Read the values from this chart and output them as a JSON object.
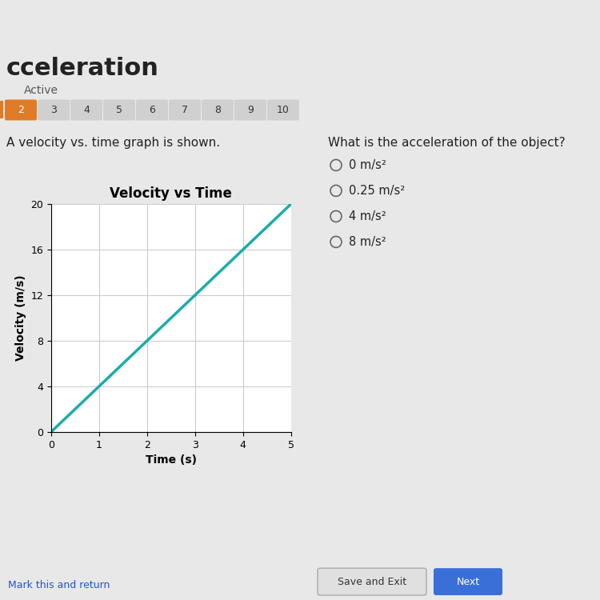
{
  "bg_color": "#e8e8e8",
  "top_bar_color": "#4a3fb5",
  "header_text": "cceleration",
  "header_subtext": "Active",
  "question_label": "A velocity vs. time graph is shown.",
  "question_right": "What is the acceleration of the object?",
  "choices": [
    "0 m/s²",
    "0.25 m/s²",
    "4 m/s²",
    "8 m/s²"
  ],
  "tab_active": "2",
  "tabs": [
    "2",
    "3",
    "4",
    "5",
    "6",
    "7",
    "8",
    "9",
    "10"
  ],
  "tab_active_color": "#e07b28",
  "tab_inactive_color": "#d0d0d0",
  "tab_text_color_active": "#ffffff",
  "tab_text_color_inactive": "#333333",
  "graph_title": "Velocity vs Time",
  "xlabel": "Time (s)",
  "ylabel": "Velocity (m/s)",
  "x_data": [
    0,
    5
  ],
  "y_data": [
    0,
    20
  ],
  "xlim": [
    0,
    5
  ],
  "ylim": [
    0,
    20
  ],
  "xticks": [
    0,
    1,
    2,
    3,
    4,
    5
  ],
  "yticks": [
    0,
    4,
    8,
    12,
    16,
    20
  ],
  "line_color": "#1aada8",
  "line_width": 2.5,
  "grid_color": "#cccccc",
  "axis_bg": "#ffffff",
  "bottom_link": "Mark this and return",
  "save_btn_text": "Save and Exit",
  "next_btn_text": "Next",
  "save_btn_color": "#e0e0e0",
  "next_btn_color": "#3a6fd8",
  "font_color_dark": "#222222",
  "font_color_blue": "#2255cc"
}
